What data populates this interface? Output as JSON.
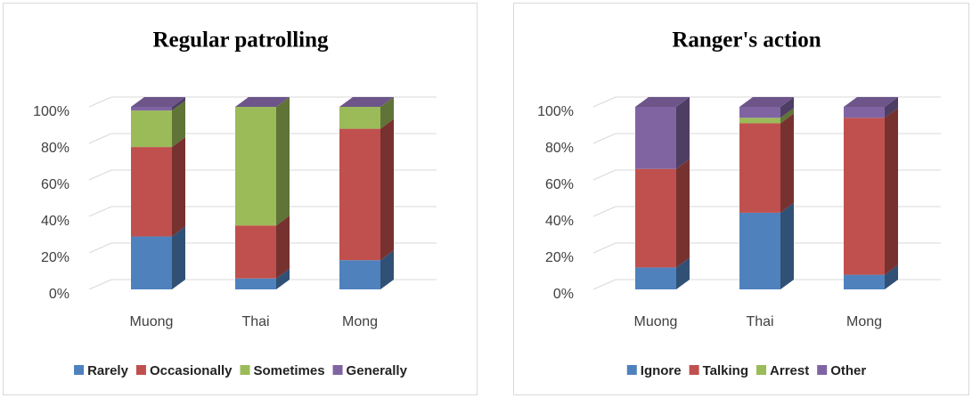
{
  "chart_data": [
    {
      "type": "bar",
      "stacked": true,
      "title": "Regular patrolling",
      "categories": [
        "Muong",
        "Thai",
        "Mong"
      ],
      "series": [
        {
          "name": "Rarely",
          "color": "#4f81bd",
          "values": [
            29,
            6,
            16
          ]
        },
        {
          "name": "Occasionally",
          "color": "#c0504d",
          "values": [
            49,
            29,
            72
          ]
        },
        {
          "name": "Sometimes",
          "color": "#9bbb59",
          "values": [
            20,
            65,
            12
          ]
        },
        {
          "name": "Generally",
          "color": "#8064a2",
          "values": [
            2,
            0,
            0
          ]
        }
      ],
      "ylim": [
        0,
        100
      ],
      "yticks": [
        {
          "value": 0,
          "label": "0%"
        },
        {
          "value": 20,
          "label": "20%"
        },
        {
          "value": 40,
          "label": "40%"
        },
        {
          "value": 60,
          "label": "60%"
        },
        {
          "value": 80,
          "label": "80%"
        },
        {
          "value": 100,
          "label": "100%"
        }
      ],
      "grid": true,
      "legend": "bottom"
    },
    {
      "type": "bar",
      "stacked": true,
      "title": "Ranger's action",
      "categories": [
        "Muong",
        "Thai",
        "Mong"
      ],
      "series": [
        {
          "name": "Ignore",
          "color": "#4f81bd",
          "values": [
            12,
            42,
            8
          ]
        },
        {
          "name": "Talking",
          "color": "#c0504d",
          "values": [
            54,
            49,
            86
          ]
        },
        {
          "name": "Arrest",
          "color": "#9bbb59",
          "values": [
            0,
            3,
            0
          ]
        },
        {
          "name": "Other",
          "color": "#8064a2",
          "values": [
            34,
            6,
            6
          ]
        }
      ],
      "ylim": [
        0,
        100
      ],
      "yticks": [
        {
          "value": 0,
          "label": "0%"
        },
        {
          "value": 20,
          "label": "20%"
        },
        {
          "value": 40,
          "label": "40%"
        },
        {
          "value": 60,
          "label": "60%"
        },
        {
          "value": 80,
          "label": "80%"
        },
        {
          "value": 100,
          "label": "100%"
        }
      ],
      "grid": true,
      "legend": "bottom"
    }
  ]
}
